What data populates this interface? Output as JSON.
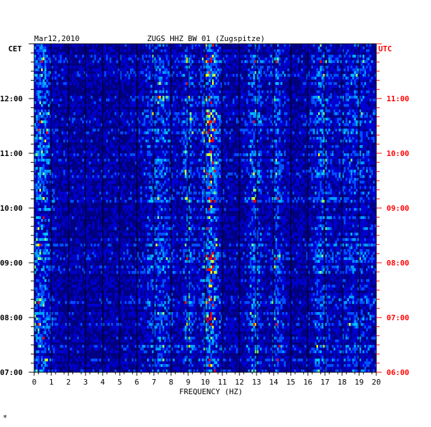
{
  "header": {
    "date": "Mar12,2010",
    "station": "ZUGS HHZ BW 01 (Zugspitze)",
    "left_zone": "CET",
    "right_zone": "UTC"
  },
  "footer_mark": "*",
  "chart_data": {
    "type": "heatmap",
    "title": "ZUGS HHZ BW 01 (Zugspitze)",
    "date": "Mar12,2010",
    "xlabel": "FREQUENCY (HZ)",
    "xlim": [
      0,
      20
    ],
    "x_ticks": [
      0,
      1,
      2,
      3,
      4,
      5,
      6,
      7,
      8,
      9,
      10,
      11,
      12,
      13,
      14,
      15,
      16,
      17,
      18,
      19,
      20
    ],
    "x_tick_labels": [
      "0",
      "1",
      "2",
      "3",
      "4",
      "5",
      "6",
      "7",
      "8",
      "9",
      "10",
      "11",
      "12",
      "13",
      "14",
      "15",
      "16",
      "17",
      "18",
      "19",
      "20"
    ],
    "left_axis_label": "CET",
    "left_ticks": [
      "08:00",
      "09:00",
      "10:00",
      "11:00",
      "12:00"
    ],
    "left_ticks_all": [
      "07:00",
      "08:00",
      "09:00",
      "10:00",
      "11:00",
      "12:00"
    ],
    "right_axis_label": "UTC",
    "right_ticks": [
      "06:00",
      "07:00",
      "08:00",
      "09:00",
      "10:00",
      "11:00"
    ],
    "time_range_cet": [
      "07:00",
      "13:00"
    ],
    "colors": {
      "background": "#000080",
      "low": "#0000c8",
      "mid": "#00c8ff",
      "high": "#ffff00",
      "peak": "#ff0000",
      "right_axis_text": "#ff0000",
      "left_axis_text": "#000000"
    },
    "bands_hz": [
      {
        "center": 0.4,
        "width": 0.6,
        "strength": 0.7
      },
      {
        "center": 9.0,
        "width": 0.3,
        "strength": 0.6
      },
      {
        "center": 10.3,
        "width": 0.5,
        "strength": 0.9
      },
      {
        "center": 7.3,
        "width": 0.8,
        "strength": 0.5
      },
      {
        "center": 12.9,
        "width": 0.4,
        "strength": 0.6
      },
      {
        "center": 14.2,
        "width": 0.4,
        "strength": 0.5
      },
      {
        "center": 16.8,
        "width": 0.5,
        "strength": 0.5
      },
      {
        "center": 18.8,
        "width": 1.2,
        "strength": 0.4
      }
    ]
  }
}
